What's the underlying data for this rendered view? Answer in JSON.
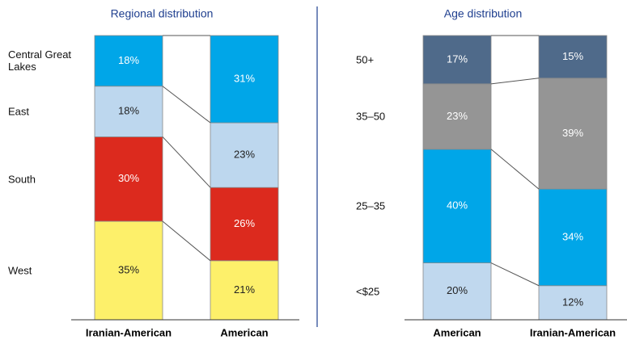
{
  "chart_data": [
    {
      "type": "stacked-bar",
      "title": "Regional distribution",
      "categories": [
        "Iranian-American",
        "American"
      ],
      "series": [
        {
          "name": "West",
          "color": "#fdf06a",
          "text_color": "#222222",
          "values": [
            35,
            21
          ],
          "value_labels": [
            "35%",
            "21%"
          ]
        },
        {
          "name": "South",
          "color": "#dc2a1e",
          "text_color": "#ffffff",
          "values": [
            30,
            26
          ],
          "value_labels": [
            "30%",
            "26%"
          ]
        },
        {
          "name": "East",
          "color": "#bdd7ee",
          "text_color": "#222222",
          "values": [
            18,
            23
          ],
          "value_labels": [
            "18%",
            "23%"
          ]
        },
        {
          "name": "Central Great Lakes",
          "color": "#00a6e8",
          "text_color": "#ffffff",
          "values": [
            18,
            31
          ],
          "value_labels": [
            "18%",
            "31%"
          ]
        }
      ]
    },
    {
      "type": "stacked-bar",
      "title": "Age distribution",
      "categories": [
        "American",
        "Iranian-American"
      ],
      "series": [
        {
          "name": "<$25",
          "color": "#c0d8ee",
          "text_color": "#222222",
          "values": [
            20,
            12
          ],
          "value_labels": [
            "20%",
            "12%"
          ]
        },
        {
          "name": "25–35",
          "color": "#00a6e8",
          "text_color": "#ffffff",
          "values": [
            40,
            34
          ],
          "value_labels": [
            "40%",
            "34%"
          ]
        },
        {
          "name": "35–50",
          "color": "#959595",
          "text_color": "#ffffff",
          "values": [
            23,
            39
          ],
          "value_labels": [
            "23%",
            "39%"
          ]
        },
        {
          "name": "50+",
          "color": "#4f6a8a",
          "text_color": "#ffffff",
          "values": [
            17,
            15
          ],
          "value_labels": [
            "17%",
            "15%"
          ]
        }
      ]
    }
  ]
}
